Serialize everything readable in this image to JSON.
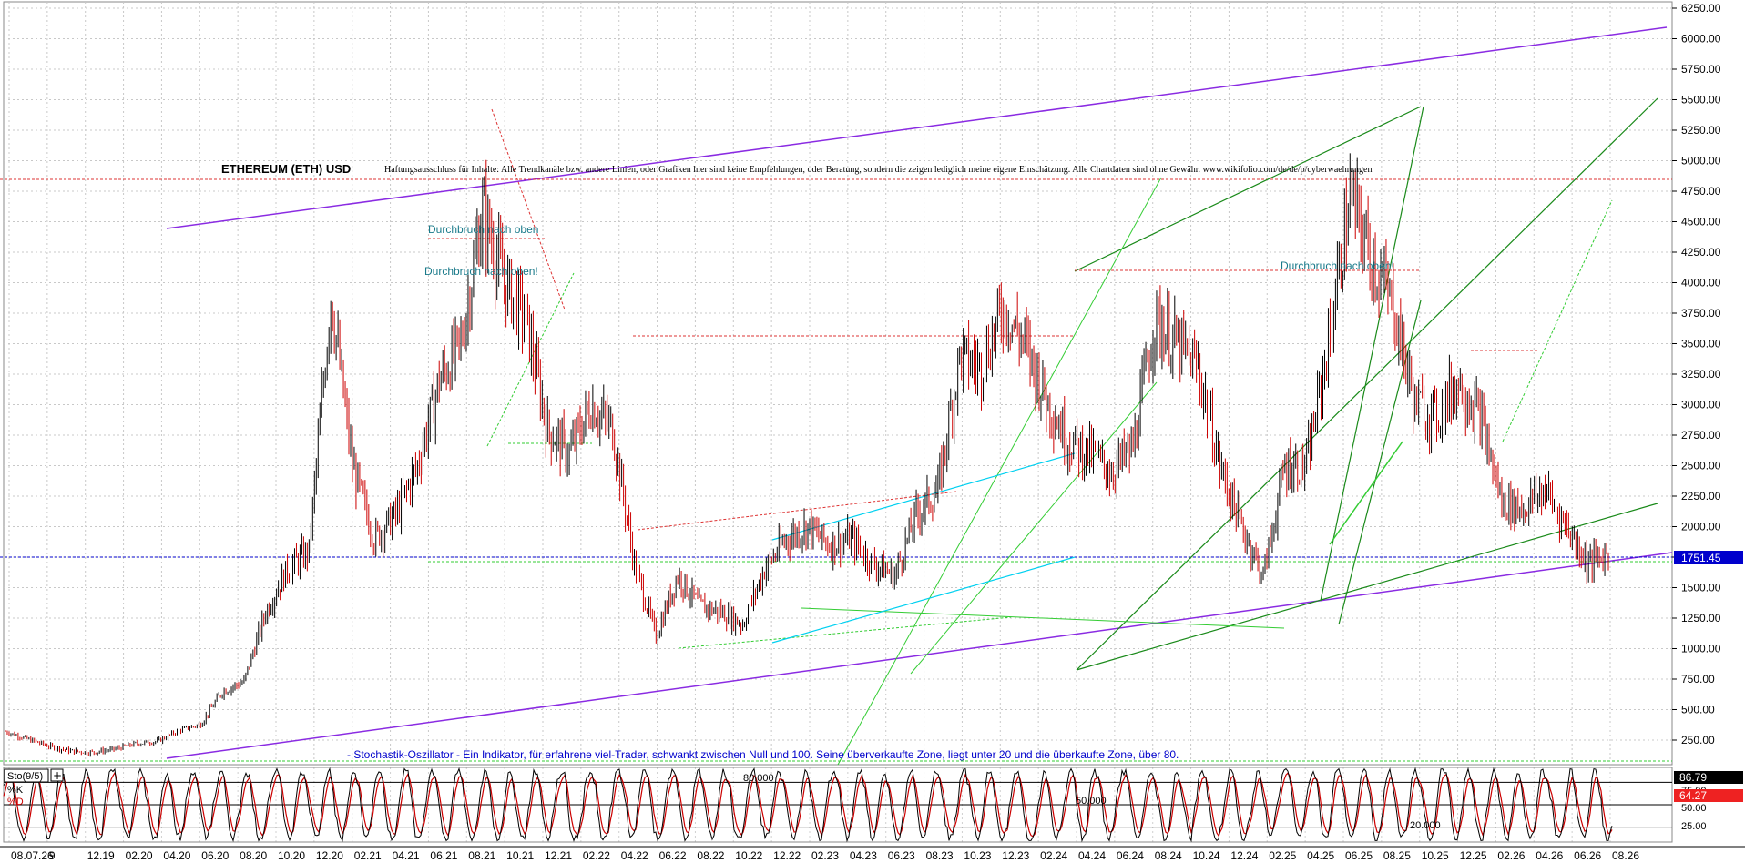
{
  "title": "ETHEREUM (ETH) USD",
  "disclaimer": "Haftungsausschluss für Inhalte: Alle Trendkanäle bzw. andere Linien, oder Grafiken hier sind keine Empfehlungen, oder Beratung, sondern die zeigen lediglich meine eigene Einschätzung. Alle Chartdaten sind ohne Gewähr. www.wikifolio.com/de/de/p/cyberwaehrungen",
  "annotations": {
    "breakout_1": "Durchbruch nach oben",
    "breakout_2": "Durchbruch nach oben!",
    "breakout_3": "Durchbruch nach oben!",
    "stochastic_note": "- Stochastik-Oszillator - Ein Indikator, für erfahrene viel-Trader, schwankt zwischen Null und 100. Seine überverkaufte Zone, liegt unter 20 und die überkaufte Zone, über 80."
  },
  "indicator": {
    "name": "Sto(9/5)",
    "k_label": "%K",
    "d_label": "%D",
    "k_value": "86.79",
    "d_value": "64.27",
    "level_80": "80.000",
    "level_50": "50.000",
    "level_20": "20.000",
    "axis_75": "75.00",
    "axis_50": "50.00",
    "axis_25": "25.00"
  },
  "colors": {
    "price_up": "#000000",
    "price_down": "#cc0000",
    "channel_purple": "#8a2be2",
    "trend_green": "#33cc33",
    "dark_green": "#1a8a1a",
    "cyan": "#00d0f0",
    "red_dotted": "#dd3333",
    "current_price_line": "#0000cc",
    "k_line": "#000000",
    "d_line": "#cc0000",
    "annotation_text": "#1a7a8a",
    "note_text": "#0000cc"
  },
  "chart_data": {
    "type": "line",
    "subtype": "candlestick",
    "title": "ETHEREUM (ETH) USD",
    "y_ticks": [
      "250.00",
      "500.00",
      "750.00",
      "1000.00",
      "1250.00",
      "1500.00",
      "1750.00",
      "2000.00",
      "2250.00",
      "2500.00",
      "2750.00",
      "3000.00",
      "3250.00",
      "3500.00",
      "3750.00",
      "4000.00",
      "4250.00",
      "4500.00",
      "4750.00",
      "5000.00",
      "5250.00",
      "5500.00",
      "5750.00",
      "6000.00",
      "6250.00"
    ],
    "x_ticks": [
      "08.07.26",
      "9",
      "12.19",
      "02.20",
      "04.20",
      "06.20",
      "08.20",
      "10.20",
      "12.20",
      "02.21",
      "04.21",
      "06.21",
      "08.21",
      "10.21",
      "12.21",
      "02.22",
      "04.22",
      "06.22",
      "08.22",
      "10.22",
      "12.22",
      "02.23",
      "04.23",
      "06.23",
      "08.23",
      "10.23",
      "12.23",
      "02.24",
      "04.24",
      "06.24",
      "08.24",
      "10.24",
      "12.24",
      "02.25",
      "04.25",
      "06.25",
      "08.25",
      "10.25",
      "12.25",
      "02.26",
      "04.26",
      "06.26",
      "08.26"
    ],
    "ylim": [
      0,
      6300
    ],
    "grid": true,
    "current_price": "1751.45",
    "series": [
      {
        "name": "ETH",
        "points": [
          [
            0,
            320
          ],
          [
            1,
            260
          ],
          [
            2,
            200
          ],
          [
            3,
            160
          ],
          [
            4,
            150
          ],
          [
            5,
            175
          ],
          [
            6,
            220
          ],
          [
            7,
            240
          ],
          [
            8,
            330
          ],
          [
            9,
            380
          ],
          [
            10,
            650
          ],
          [
            11,
            730
          ],
          [
            12,
            1300
          ],
          [
            13,
            1650
          ],
          [
            14,
            1800
          ],
          [
            15,
            3900
          ],
          [
            16,
            2500
          ],
          [
            17,
            1900
          ],
          [
            18,
            2100
          ],
          [
            19,
            2500
          ],
          [
            20,
            3200
          ],
          [
            21,
            3500
          ],
          [
            22,
            4600
          ],
          [
            23,
            4000
          ],
          [
            24,
            3700
          ],
          [
            25,
            2800
          ],
          [
            26,
            2600
          ],
          [
            27,
            3000
          ],
          [
            28,
            2800
          ],
          [
            29,
            1700
          ],
          [
            30,
            1100
          ],
          [
            31,
            1600
          ],
          [
            32,
            1350
          ],
          [
            33,
            1300
          ],
          [
            34,
            1200
          ],
          [
            35,
            1650
          ],
          [
            36,
            1900
          ],
          [
            37,
            2000
          ],
          [
            38,
            1850
          ],
          [
            39,
            1900
          ],
          [
            40,
            1700
          ],
          [
            41,
            1600
          ],
          [
            42,
            2100
          ],
          [
            43,
            2300
          ],
          [
            44,
            3400
          ],
          [
            45,
            3300
          ],
          [
            46,
            3800
          ],
          [
            47,
            3500
          ],
          [
            48,
            3050
          ],
          [
            49,
            2700
          ],
          [
            50,
            2600
          ],
          [
            51,
            2450
          ],
          [
            52,
            2650
          ],
          [
            53,
            3700
          ],
          [
            54,
            3500
          ],
          [
            55,
            3300
          ],
          [
            56,
            2500
          ],
          [
            57,
            2000
          ],
          [
            58,
            1600
          ],
          [
            59,
            2500
          ],
          [
            60,
            2500
          ],
          [
            61,
            3500
          ],
          [
            62,
            4700
          ],
          [
            63,
            4200
          ],
          [
            64,
            3800
          ],
          [
            65,
            3000
          ],
          [
            66,
            2900
          ],
          [
            67,
            3200
          ],
          [
            68,
            2900
          ],
          [
            69,
            2200
          ],
          [
            70,
            2150
          ],
          [
            71,
            2300
          ],
          [
            72,
            2000
          ],
          [
            73,
            1700
          ],
          [
            74,
            1780
          ]
        ]
      }
    ],
    "indicator_range": [
      0,
      100
    ],
    "indicator_levels": [
      20,
      50,
      80
    ]
  }
}
